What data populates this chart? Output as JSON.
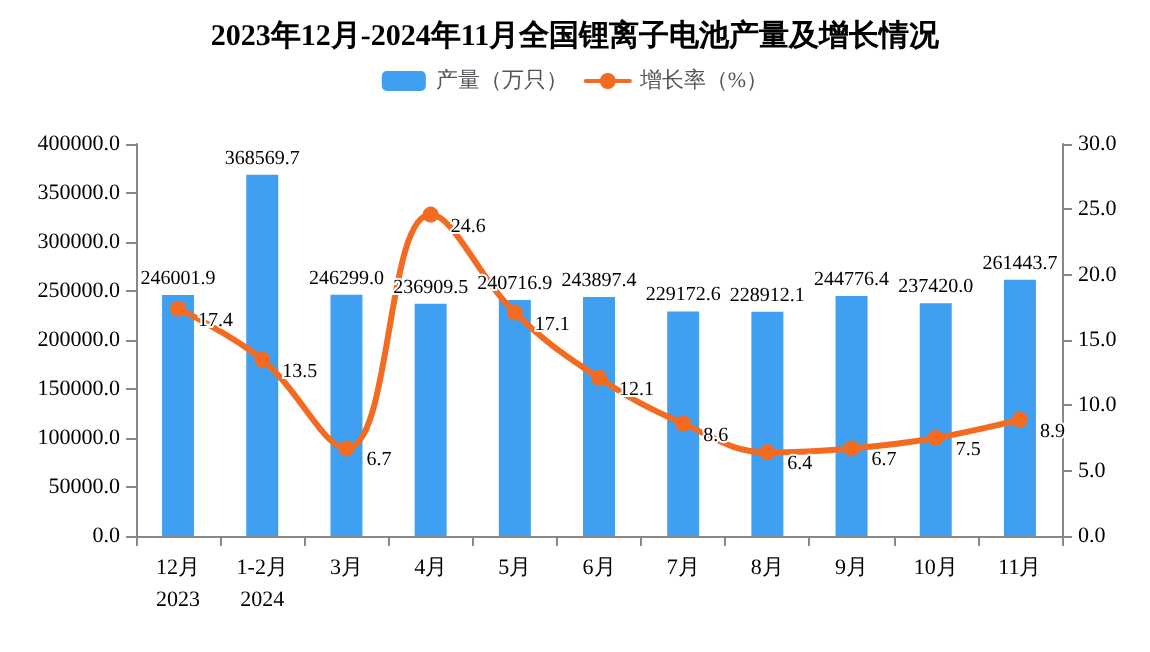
{
  "chart_data": {
    "type": "bar",
    "title": "2023年12月-2024年11月全国锂离子电池产量及增长情况",
    "categories": [
      "12月\n2023",
      "1-2月\n2024",
      "3月",
      "4月",
      "5月",
      "6月",
      "7月",
      "8月",
      "9月",
      "10月",
      "11月"
    ],
    "series": [
      {
        "name": "产量（万只）",
        "color": "#3f9ff0",
        "values": [
          246001.9,
          368569.7,
          246299.0,
          236909.5,
          240716.9,
          243897.4,
          229172.6,
          228912.1,
          244776.4,
          237420.0,
          261443.7
        ],
        "value_labels": [
          "246001.9",
          "368569.7",
          "246299.0",
          "236909.5",
          "240716.9",
          "243897.4",
          "229172.6",
          "228912.1",
          "244776.4",
          "237420.0",
          "261443.7"
        ]
      },
      {
        "name": "增长率（%）",
        "type": "line",
        "axis": "y2",
        "color": "#f26b21",
        "values": [
          17.4,
          13.5,
          6.7,
          24.6,
          17.1,
          12.1,
          8.6,
          6.4,
          6.7,
          7.5,
          8.9
        ],
        "value_labels": [
          "17.4",
          "13.5",
          "6.7",
          "24.6",
          "17.1",
          "12.1",
          "8.6",
          "6.4",
          "6.7",
          "7.5",
          "8.9"
        ]
      }
    ],
    "ylim": [
      0,
      400000
    ],
    "yticks": [
      {
        "value": 0,
        "label": "0.0"
      },
      {
        "value": 50000,
        "label": "50000.0"
      },
      {
        "value": 100000,
        "label": "100000.0"
      },
      {
        "value": 150000,
        "label": "150000.0"
      },
      {
        "value": 200000,
        "label": "200000.0"
      },
      {
        "value": 250000,
        "label": "250000.0"
      },
      {
        "value": 300000,
        "label": "300000.0"
      },
      {
        "value": 350000,
        "label": "350000.0"
      },
      {
        "value": 400000,
        "label": "400000.0"
      }
    ],
    "y2lim": [
      0,
      30
    ],
    "y2ticks": [
      {
        "value": 0,
        "label": "0.0"
      },
      {
        "value": 5,
        "label": "5.0"
      },
      {
        "value": 10,
        "label": "10.0"
      },
      {
        "value": 15,
        "label": "15.0"
      },
      {
        "value": 20,
        "label": "20.0"
      },
      {
        "value": 25,
        "label": "25.0"
      },
      {
        "value": 30,
        "label": "30.0"
      }
    ],
    "legend": "top",
    "grid": false,
    "marker": "circle"
  }
}
